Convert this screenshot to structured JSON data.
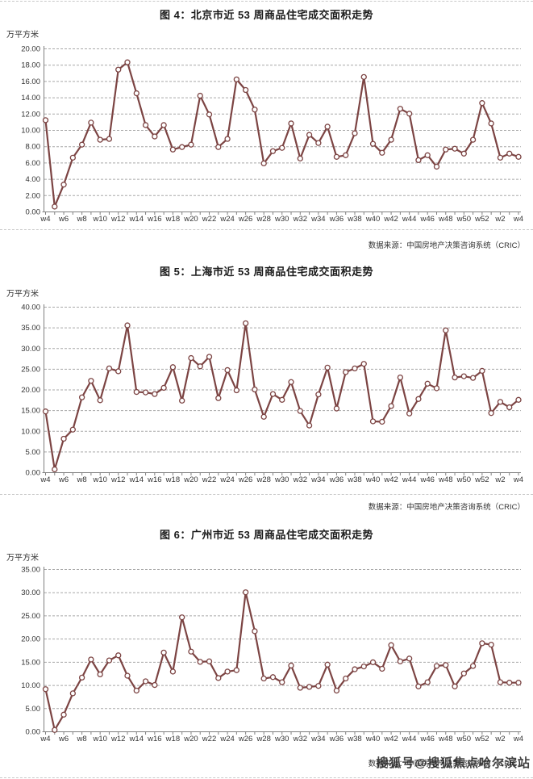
{
  "page": {
    "watermark": "搜狐号@搜狐焦点哈尔滨站"
  },
  "colors": {
    "line": "#7C4443",
    "marker_fill": "#FFFFFF",
    "grid": "#A8A8A8",
    "axis": "#808080",
    "tick_text": "#333333",
    "title_text": "#1A1A1A"
  },
  "chart_data": [
    {
      "type": "line",
      "title": "图 4：北京市近 53 周商品住宅成交面积走势",
      "unit_label": "万平方米",
      "source": "数据来源：中国房地产决策咨询系统（CRIC）",
      "ylim": [
        0,
        20
      ],
      "ystep": 2,
      "grid": true,
      "legend": "none",
      "x_tick_labels": [
        "w4",
        "w6",
        "w8",
        "w10",
        "w12",
        "w14",
        "w16",
        "w18",
        "w20",
        "w22",
        "w24",
        "w26",
        "w28",
        "w30",
        "w32",
        "w34",
        "w36",
        "w38",
        "w40",
        "w42",
        "w44",
        "w46",
        "w48",
        "w50",
        "w52",
        "w2",
        "w4"
      ],
      "weeks": [
        "w4",
        "w5",
        "w6",
        "w7",
        "w8",
        "w9",
        "w10",
        "w11",
        "w12",
        "w13",
        "w14",
        "w15",
        "w16",
        "w17",
        "w18",
        "w19",
        "w20",
        "w21",
        "w22",
        "w23",
        "w24",
        "w25",
        "w26",
        "w27",
        "w28",
        "w29",
        "w30",
        "w31",
        "w32",
        "w33",
        "w34",
        "w35",
        "w36",
        "w37",
        "w38",
        "w39",
        "w40",
        "w41",
        "w42",
        "w43",
        "w44",
        "w45",
        "w46",
        "w47",
        "w48",
        "w49",
        "w50",
        "w51",
        "w52",
        "w1",
        "w2",
        "w3",
        "w4"
      ],
      "values": [
        11.2,
        0.6,
        3.3,
        6.6,
        8.2,
        10.9,
        8.8,
        8.9,
        17.4,
        18.3,
        14.5,
        10.6,
        9.2,
        10.6,
        7.6,
        7.9,
        8.2,
        14.2,
        11.9,
        7.9,
        8.9,
        16.2,
        14.9,
        12.5,
        5.9,
        7.4,
        7.8,
        10.8,
        6.5,
        9.4,
        8.4,
        10.4,
        6.7,
        6.9,
        9.6,
        16.5,
        8.3,
        7.2,
        8.8,
        12.6,
        12.0,
        6.3,
        6.9,
        5.5,
        7.6,
        7.7,
        7.1,
        8.8,
        13.3,
        10.8,
        6.6,
        7.1,
        6.7
      ]
    },
    {
      "type": "line",
      "title": "图 5：上海市近 53 周商品住宅成交面积走势",
      "unit_label": "万平方米",
      "source": "数据来源：中国房地产决策咨询系统（CRIC）",
      "ylim": [
        0,
        40
      ],
      "ystep": 5,
      "grid": true,
      "legend": "none",
      "x_tick_labels": [
        "w4",
        "w6",
        "w8",
        "w10",
        "w12",
        "w14",
        "w16",
        "w18",
        "w20",
        "w22",
        "w24",
        "w26",
        "w28",
        "w30",
        "w32",
        "w34",
        "w36",
        "w38",
        "w40",
        "w42",
        "w44",
        "w46",
        "w48",
        "w50",
        "w52",
        "w2",
        "w4"
      ],
      "weeks": [
        "w4",
        "w5",
        "w6",
        "w7",
        "w8",
        "w9",
        "w10",
        "w11",
        "w12",
        "w13",
        "w14",
        "w15",
        "w16",
        "w17",
        "w18",
        "w19",
        "w20",
        "w21",
        "w22",
        "w23",
        "w24",
        "w25",
        "w26",
        "w27",
        "w28",
        "w29",
        "w30",
        "w31",
        "w32",
        "w33",
        "w34",
        "w35",
        "w36",
        "w37",
        "w38",
        "w39",
        "w40",
        "w41",
        "w42",
        "w43",
        "w44",
        "w45",
        "w46",
        "w47",
        "w48",
        "w49",
        "w50",
        "w51",
        "w52",
        "w1",
        "w2",
        "w3",
        "w4"
      ],
      "values": [
        14.7,
        0.7,
        8.1,
        10.3,
        18.1,
        22.1,
        17.4,
        25.1,
        24.4,
        35.5,
        19.4,
        19.3,
        18.9,
        20.4,
        25.4,
        17.3,
        27.6,
        25.6,
        27.9,
        17.9,
        24.7,
        19.8,
        36.0,
        20.0,
        13.4,
        18.9,
        17.5,
        21.8,
        14.8,
        11.3,
        18.8,
        25.3,
        15.4,
        24.2,
        25.1,
        26.2,
        12.3,
        12.2,
        16.0,
        22.9,
        14.2,
        17.7,
        21.4,
        20.3,
        34.3,
        22.9,
        23.2,
        22.8,
        24.5,
        14.3,
        17.0,
        15.7,
        17.5
      ]
    },
    {
      "type": "line",
      "title": "图 6：广州市近 53 周商品住宅成交面积走势",
      "unit_label": "万平方米",
      "source": "数据来源：中国房地产决策咨询系统（CRIC）",
      "ylim": [
        0,
        35
      ],
      "ystep": 5,
      "grid": true,
      "legend": "none",
      "x_tick_labels": [
        "w4",
        "w6",
        "w8",
        "w10",
        "w12",
        "w14",
        "w16",
        "w18",
        "w20",
        "w22",
        "w24",
        "w26",
        "w28",
        "w30",
        "w32",
        "w34",
        "w36",
        "w38",
        "w40",
        "w42",
        "w44",
        "w46",
        "w48",
        "w50",
        "w52",
        "w2",
        "w4"
      ],
      "weeks": [
        "w4",
        "w5",
        "w6",
        "w7",
        "w8",
        "w9",
        "w10",
        "w11",
        "w12",
        "w13",
        "w14",
        "w15",
        "w16",
        "w17",
        "w18",
        "w19",
        "w20",
        "w21",
        "w22",
        "w23",
        "w24",
        "w25",
        "w26",
        "w27",
        "w28",
        "w29",
        "w30",
        "w31",
        "w32",
        "w33",
        "w34",
        "w35",
        "w36",
        "w37",
        "w38",
        "w39",
        "w40",
        "w41",
        "w42",
        "w43",
        "w44",
        "w45",
        "w46",
        "w47",
        "w48",
        "w49",
        "w50",
        "w51",
        "w52",
        "w1",
        "w2",
        "w3",
        "w4"
      ],
      "values": [
        9.1,
        0.3,
        3.6,
        8.2,
        11.6,
        15.5,
        12.3,
        15.3,
        16.4,
        12.0,
        8.8,
        10.8,
        10.0,
        17.0,
        12.9,
        24.6,
        17.2,
        15.0,
        15.1,
        11.5,
        12.9,
        13.2,
        30.0,
        21.6,
        11.4,
        11.7,
        10.6,
        14.2,
        9.4,
        9.6,
        9.8,
        14.4,
        8.8,
        11.4,
        13.4,
        14.0,
        14.9,
        13.5,
        18.6,
        15.1,
        15.7,
        9.7,
        10.6,
        14.1,
        14.3,
        9.7,
        12.5,
        14.1,
        19.0,
        18.7,
        10.6,
        10.5,
        10.5
      ]
    }
  ]
}
